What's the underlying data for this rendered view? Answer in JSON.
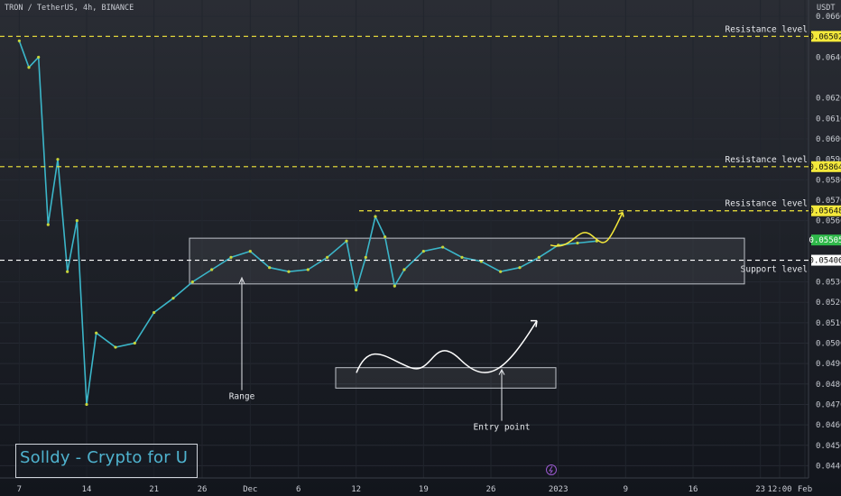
{
  "header": {
    "symbol": "TRON / TetherUS, 4h, BINANCE",
    "currency": "USDT"
  },
  "chart_data": {
    "type": "line",
    "title": "TRON / TetherUS, 4h, BINANCE",
    "ylabel": "USDT",
    "ylim": [
      0.0434,
      0.0668
    ],
    "y_ticks": [
      "0.06600",
      "0.06400",
      "0.06200",
      "0.06100",
      "0.06000",
      "0.05900",
      "0.05800",
      "0.05700",
      "0.05600",
      "0.05300",
      "0.05200",
      "0.05100",
      "0.05000",
      "0.04900",
      "0.04800",
      "0.04700",
      "0.04600",
      "0.04500",
      "0.04400"
    ],
    "x_ticks": [
      "7",
      "14",
      "21",
      "26",
      "Dec",
      "6",
      "12",
      "19",
      "26",
      "2023",
      "9",
      "16",
      "23",
      "12:00",
      "Feb"
    ],
    "series": [
      {
        "color": "#3bb6c9",
        "x": [
          "2022-11-07",
          "2022-11-08",
          "2022-11-09",
          "2022-11-10",
          "2022-11-11",
          "2022-11-12",
          "2022-11-13",
          "2022-11-14",
          "2022-11-15",
          "2022-11-17",
          "2022-11-19",
          "2022-11-21",
          "2022-11-23",
          "2022-11-25",
          "2022-11-27",
          "2022-11-29",
          "2022-12-01",
          "2022-12-03",
          "2022-12-05",
          "2022-12-07",
          "2022-12-09",
          "2022-12-11",
          "2022-12-12",
          "2022-12-13",
          "2022-12-14",
          "2022-12-15",
          "2022-12-16",
          "2022-12-17",
          "2022-12-19",
          "2022-12-21",
          "2022-12-23",
          "2022-12-25",
          "2022-12-27",
          "2022-12-29",
          "2022-12-31",
          "2023-01-02",
          "2023-01-04",
          "2023-01-06"
        ],
        "y": [
          0.0648,
          0.0635,
          0.064,
          0.0558,
          0.059,
          0.0535,
          0.056,
          0.047,
          0.0505,
          0.0498,
          0.05,
          0.0515,
          0.0522,
          0.053,
          0.0536,
          0.0542,
          0.0545,
          0.0537,
          0.0535,
          0.0536,
          0.0542,
          0.055,
          0.0526,
          0.0542,
          0.0562,
          0.0552,
          0.0528,
          0.0536,
          0.0545,
          0.0547,
          0.0542,
          0.054,
          0.0535,
          0.0537,
          0.0542,
          0.0548,
          0.0549,
          0.055
        ]
      }
    ],
    "levels": [
      {
        "label": "Resistance level",
        "value": 0.06502,
        "tag": "0.06502"
      },
      {
        "label": "Resistance level",
        "value": 0.05864,
        "tag": "0.05864"
      },
      {
        "label": "Resistance level",
        "value": 0.05648,
        "tag": "0.05648"
      },
      {
        "label": "Support level",
        "value": 0.05406,
        "tag": "0.05406"
      }
    ],
    "current_price": "0.05505",
    "annotations": {
      "range": "Range",
      "entry": "Entry point"
    }
  },
  "watermark": "Solldy - Crypto for U",
  "colors": {
    "background": "#161a23",
    "levels": "#f5e93b",
    "support": "#ffffff",
    "series": "#3bb6c9",
    "price_tag": "#f5e93b"
  }
}
